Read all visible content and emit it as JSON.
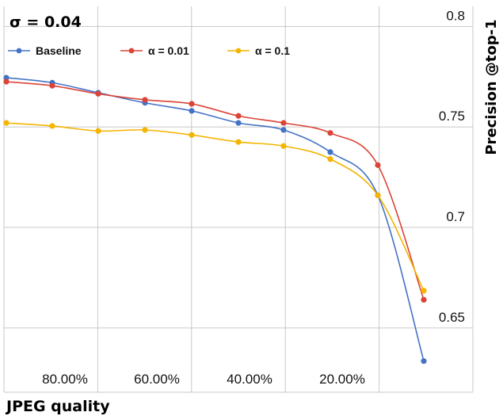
{
  "chart_data": {
    "type": "line",
    "title": "σ = 0.04",
    "xlabel": "JPEG quality",
    "ylabel": "Precision @top-1",
    "x_ticks": [
      "80.00%",
      "60.00%",
      "40.00%",
      "20.00%"
    ],
    "x": [
      95,
      90,
      80,
      70,
      60,
      50,
      40,
      30,
      20,
      10,
      5
    ],
    "y_ticks": [
      0.65,
      0.7,
      0.75,
      0.8
    ],
    "ylim": [
      0.618,
      0.81
    ],
    "grid": true,
    "legend": "top-left",
    "series": [
      {
        "name": "Baseline",
        "color": "#4472c4",
        "values": [
          0.7745,
          0.772,
          0.767,
          0.762,
          0.758,
          0.752,
          0.7485,
          0.7375,
          0.716,
          0.6335,
          null
        ]
      },
      {
        "name": "α = 0.01",
        "color": "#db4437",
        "values": [
          0.7725,
          0.7705,
          0.7665,
          0.7635,
          0.7615,
          0.7555,
          0.752,
          0.747,
          0.731,
          0.664,
          null
        ]
      },
      {
        "name": "α = 0.1",
        "color": "#f4b400",
        "values": [
          0.752,
          0.7505,
          0.748,
          0.7485,
          0.746,
          0.7425,
          0.7405,
          0.734,
          0.716,
          0.6685,
          null
        ]
      }
    ]
  }
}
